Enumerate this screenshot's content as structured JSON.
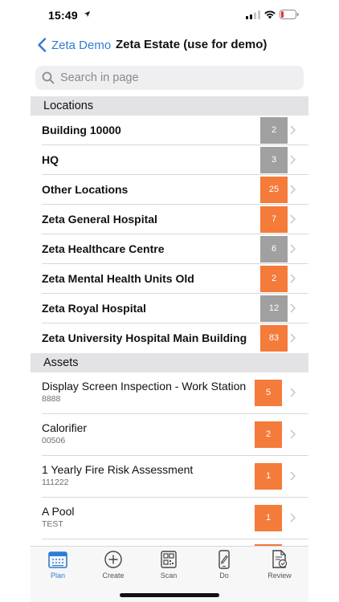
{
  "status_bar": {
    "time": "15:49"
  },
  "nav": {
    "back_label": "Zeta Demo",
    "title": "Zeta Estate (use for demo)"
  },
  "search": {
    "placeholder": "Search in page",
    "value": ""
  },
  "locations": {
    "header": "Locations",
    "items": [
      {
        "name": "Building 10000",
        "count": "2",
        "color": "#a0a0a0"
      },
      {
        "name": "HQ",
        "count": "3",
        "color": "#a0a0a0"
      },
      {
        "name": "Other Locations",
        "count": "25",
        "color": "#f47b3a"
      },
      {
        "name": "Zeta General Hospital",
        "count": "7",
        "color": "#f47b3a"
      },
      {
        "name": "Zeta Healthcare Centre",
        "count": "6",
        "color": "#a0a0a0"
      },
      {
        "name": "Zeta Mental Health Units Old",
        "count": "2",
        "color": "#f47b3a"
      },
      {
        "name": "Zeta Royal Hospital",
        "count": "12",
        "color": "#a0a0a0"
      },
      {
        "name": "Zeta University Hospital Main Building",
        "count": "83",
        "color": "#f47b3a"
      }
    ]
  },
  "assets": {
    "header": "Assets",
    "items": [
      {
        "name": "Display Screen Inspection - Work Station",
        "code": "8888",
        "count": "5",
        "color": "#f47b3a"
      },
      {
        "name": "Calorifier",
        "code": "00506",
        "count": "2",
        "color": "#f47b3a"
      },
      {
        "name": "1 Yearly Fire Risk Assessment",
        "code": "111222",
        "count": "1",
        "color": "#f47b3a"
      },
      {
        "name": "A Pool",
        "code": "TEST",
        "count": "1",
        "color": "#f47b3a"
      }
    ]
  },
  "tabs": [
    {
      "label": "Plan",
      "icon": "calendar-icon",
      "active": true
    },
    {
      "label": "Create",
      "icon": "plus-circle-icon",
      "active": false
    },
    {
      "label": "Scan",
      "icon": "qr-code-icon",
      "active": false
    },
    {
      "label": "Do",
      "icon": "phone-edit-icon",
      "active": false
    },
    {
      "label": "Review",
      "icon": "document-check-icon",
      "active": false
    }
  ],
  "colors": {
    "accent": "#2f7bd6",
    "badge_orange": "#f47b3a",
    "badge_grey": "#a0a0a0"
  }
}
